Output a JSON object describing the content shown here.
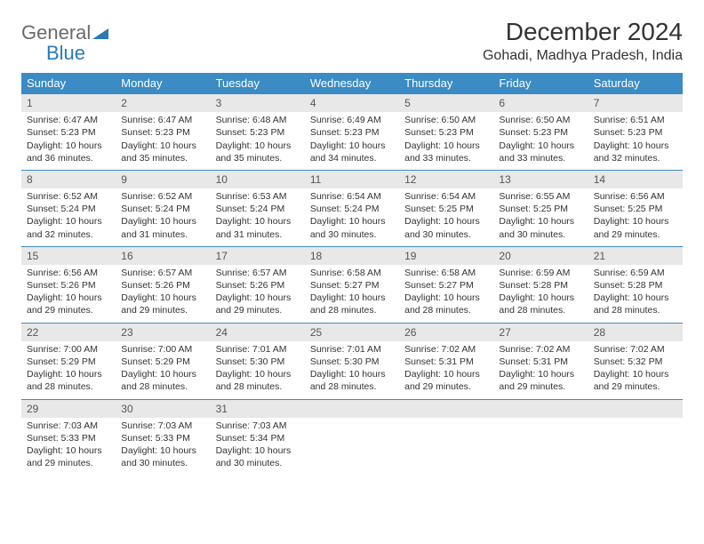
{
  "logo": {
    "word1": "General",
    "word2": "Blue"
  },
  "title": "December 2024",
  "location": "Gohadi, Madhya Pradesh, India",
  "colors": {
    "header_bg": "#3b8bc4",
    "header_text": "#ffffff",
    "daynum_bg": "#e8e8e8",
    "border": "#3b8bc4",
    "logo_gray": "#6a6a6a",
    "logo_blue": "#2a7ab8"
  },
  "day_names": [
    "Sunday",
    "Monday",
    "Tuesday",
    "Wednesday",
    "Thursday",
    "Friday",
    "Saturday"
  ],
  "weeks": [
    [
      {
        "n": "1",
        "sr": "Sunrise: 6:47 AM",
        "ss": "Sunset: 5:23 PM",
        "dl": "Daylight: 10 hours and 36 minutes."
      },
      {
        "n": "2",
        "sr": "Sunrise: 6:47 AM",
        "ss": "Sunset: 5:23 PM",
        "dl": "Daylight: 10 hours and 35 minutes."
      },
      {
        "n": "3",
        "sr": "Sunrise: 6:48 AM",
        "ss": "Sunset: 5:23 PM",
        "dl": "Daylight: 10 hours and 35 minutes."
      },
      {
        "n": "4",
        "sr": "Sunrise: 6:49 AM",
        "ss": "Sunset: 5:23 PM",
        "dl": "Daylight: 10 hours and 34 minutes."
      },
      {
        "n": "5",
        "sr": "Sunrise: 6:50 AM",
        "ss": "Sunset: 5:23 PM",
        "dl": "Daylight: 10 hours and 33 minutes."
      },
      {
        "n": "6",
        "sr": "Sunrise: 6:50 AM",
        "ss": "Sunset: 5:23 PM",
        "dl": "Daylight: 10 hours and 33 minutes."
      },
      {
        "n": "7",
        "sr": "Sunrise: 6:51 AM",
        "ss": "Sunset: 5:23 PM",
        "dl": "Daylight: 10 hours and 32 minutes."
      }
    ],
    [
      {
        "n": "8",
        "sr": "Sunrise: 6:52 AM",
        "ss": "Sunset: 5:24 PM",
        "dl": "Daylight: 10 hours and 32 minutes."
      },
      {
        "n": "9",
        "sr": "Sunrise: 6:52 AM",
        "ss": "Sunset: 5:24 PM",
        "dl": "Daylight: 10 hours and 31 minutes."
      },
      {
        "n": "10",
        "sr": "Sunrise: 6:53 AM",
        "ss": "Sunset: 5:24 PM",
        "dl": "Daylight: 10 hours and 31 minutes."
      },
      {
        "n": "11",
        "sr": "Sunrise: 6:54 AM",
        "ss": "Sunset: 5:24 PM",
        "dl": "Daylight: 10 hours and 30 minutes."
      },
      {
        "n": "12",
        "sr": "Sunrise: 6:54 AM",
        "ss": "Sunset: 5:25 PM",
        "dl": "Daylight: 10 hours and 30 minutes."
      },
      {
        "n": "13",
        "sr": "Sunrise: 6:55 AM",
        "ss": "Sunset: 5:25 PM",
        "dl": "Daylight: 10 hours and 30 minutes."
      },
      {
        "n": "14",
        "sr": "Sunrise: 6:56 AM",
        "ss": "Sunset: 5:25 PM",
        "dl": "Daylight: 10 hours and 29 minutes."
      }
    ],
    [
      {
        "n": "15",
        "sr": "Sunrise: 6:56 AM",
        "ss": "Sunset: 5:26 PM",
        "dl": "Daylight: 10 hours and 29 minutes."
      },
      {
        "n": "16",
        "sr": "Sunrise: 6:57 AM",
        "ss": "Sunset: 5:26 PM",
        "dl": "Daylight: 10 hours and 29 minutes."
      },
      {
        "n": "17",
        "sr": "Sunrise: 6:57 AM",
        "ss": "Sunset: 5:26 PM",
        "dl": "Daylight: 10 hours and 29 minutes."
      },
      {
        "n": "18",
        "sr": "Sunrise: 6:58 AM",
        "ss": "Sunset: 5:27 PM",
        "dl": "Daylight: 10 hours and 28 minutes."
      },
      {
        "n": "19",
        "sr": "Sunrise: 6:58 AM",
        "ss": "Sunset: 5:27 PM",
        "dl": "Daylight: 10 hours and 28 minutes."
      },
      {
        "n": "20",
        "sr": "Sunrise: 6:59 AM",
        "ss": "Sunset: 5:28 PM",
        "dl": "Daylight: 10 hours and 28 minutes."
      },
      {
        "n": "21",
        "sr": "Sunrise: 6:59 AM",
        "ss": "Sunset: 5:28 PM",
        "dl": "Daylight: 10 hours and 28 minutes."
      }
    ],
    [
      {
        "n": "22",
        "sr": "Sunrise: 7:00 AM",
        "ss": "Sunset: 5:29 PM",
        "dl": "Daylight: 10 hours and 28 minutes."
      },
      {
        "n": "23",
        "sr": "Sunrise: 7:00 AM",
        "ss": "Sunset: 5:29 PM",
        "dl": "Daylight: 10 hours and 28 minutes."
      },
      {
        "n": "24",
        "sr": "Sunrise: 7:01 AM",
        "ss": "Sunset: 5:30 PM",
        "dl": "Daylight: 10 hours and 28 minutes."
      },
      {
        "n": "25",
        "sr": "Sunrise: 7:01 AM",
        "ss": "Sunset: 5:30 PM",
        "dl": "Daylight: 10 hours and 28 minutes."
      },
      {
        "n": "26",
        "sr": "Sunrise: 7:02 AM",
        "ss": "Sunset: 5:31 PM",
        "dl": "Daylight: 10 hours and 29 minutes."
      },
      {
        "n": "27",
        "sr": "Sunrise: 7:02 AM",
        "ss": "Sunset: 5:31 PM",
        "dl": "Daylight: 10 hours and 29 minutes."
      },
      {
        "n": "28",
        "sr": "Sunrise: 7:02 AM",
        "ss": "Sunset: 5:32 PM",
        "dl": "Daylight: 10 hours and 29 minutes."
      }
    ],
    [
      {
        "n": "29",
        "sr": "Sunrise: 7:03 AM",
        "ss": "Sunset: 5:33 PM",
        "dl": "Daylight: 10 hours and 29 minutes."
      },
      {
        "n": "30",
        "sr": "Sunrise: 7:03 AM",
        "ss": "Sunset: 5:33 PM",
        "dl": "Daylight: 10 hours and 30 minutes."
      },
      {
        "n": "31",
        "sr": "Sunrise: 7:03 AM",
        "ss": "Sunset: 5:34 PM",
        "dl": "Daylight: 10 hours and 30 minutes."
      },
      {
        "empty": true
      },
      {
        "empty": true
      },
      {
        "empty": true
      },
      {
        "empty": true
      }
    ]
  ]
}
